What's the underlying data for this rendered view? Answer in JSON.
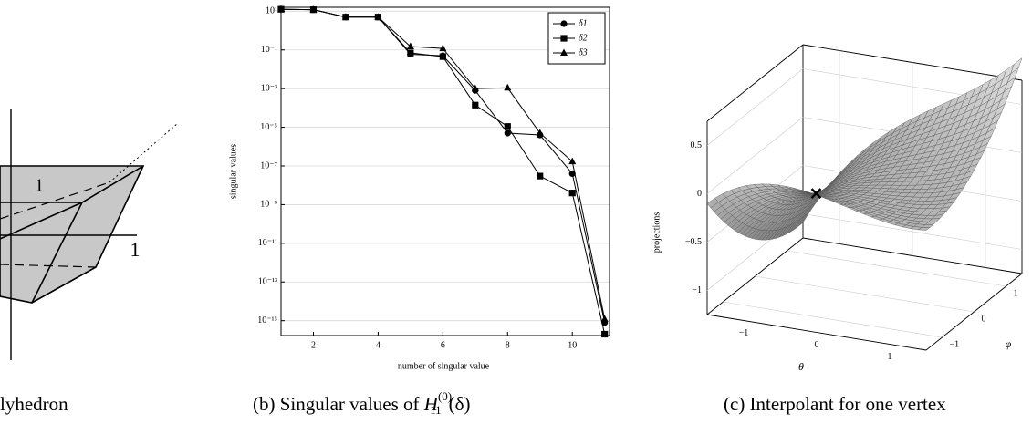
{
  "chart_data": {
    "type": "line",
    "x_label": "number of singular value",
    "y_label": "singular values",
    "x": [
      1,
      2,
      3,
      4,
      5,
      6,
      7,
      8,
      9,
      10,
      11
    ],
    "series": [
      {
        "name": "δ1",
        "color": "#000000",
        "marker": "circle",
        "values": [
          12.6,
          12,
          5,
          5,
          0.06,
          0.05,
          0.0008,
          5e-06,
          4e-06,
          4e-08,
          8e-16
        ]
      },
      {
        "name": "δ2",
        "color": "#000000",
        "marker": "square",
        "values": [
          12.6,
          12,
          5,
          5,
          0.07,
          0.045,
          0.00014,
          1.1e-05,
          3e-08,
          4e-09,
          2e-16
        ]
      },
      {
        "name": "δ3",
        "color": "#000000",
        "marker": "triangle",
        "values": [
          12.6,
          12,
          5,
          5,
          0.15,
          0.12,
          0.001,
          0.0011,
          5e-06,
          1.7e-07,
          1.2e-15
        ]
      }
    ],
    "log_y": true,
    "xlim": [
      1,
      11.15
    ],
    "ylim": [
      1.7e-16,
      16
    ],
    "xticks": [
      2,
      4,
      6,
      8,
      10
    ],
    "yticks": [
      {
        "value": 10,
        "label": "10¹"
      },
      {
        "value": 0.1,
        "label": "10⁻¹"
      },
      {
        "value": 0.001,
        "label": "10⁻³"
      },
      {
        "value": 1e-05,
        "label": "10⁻⁵"
      },
      {
        "value": 1e-07,
        "label": "10⁻⁷"
      },
      {
        "value": 1e-09,
        "label": "10⁻⁹"
      },
      {
        "value": 1e-11,
        "label": "10⁻¹¹"
      },
      {
        "value": 1e-13,
        "label": "10⁻¹³"
      },
      {
        "value": 1e-15,
        "label": "10⁻¹⁵"
      }
    ],
    "grid": true,
    "legend": "top-right"
  },
  "panel_a": {
    "caption": "lyhedron",
    "axis_label_x": "1",
    "axis_label_y": "1"
  },
  "panel_b": {
    "caption": {
      "prefix": "(b) Singular values of ",
      "symbol": "H",
      "subscript": "11",
      "superscript": "(0)",
      "suffix": "(δ)"
    }
  },
  "panel_c": {
    "caption": "(c) Interpolant for one vertex",
    "z_label": "projections",
    "theta_label": "θ",
    "phi_label": "φ",
    "z_ticks": [
      "0.5",
      "0",
      "−0.5",
      "−1"
    ],
    "theta_ticks": [
      "−1",
      "0",
      "1"
    ],
    "phi_ticks": [
      "1",
      "0",
      "−1"
    ]
  }
}
